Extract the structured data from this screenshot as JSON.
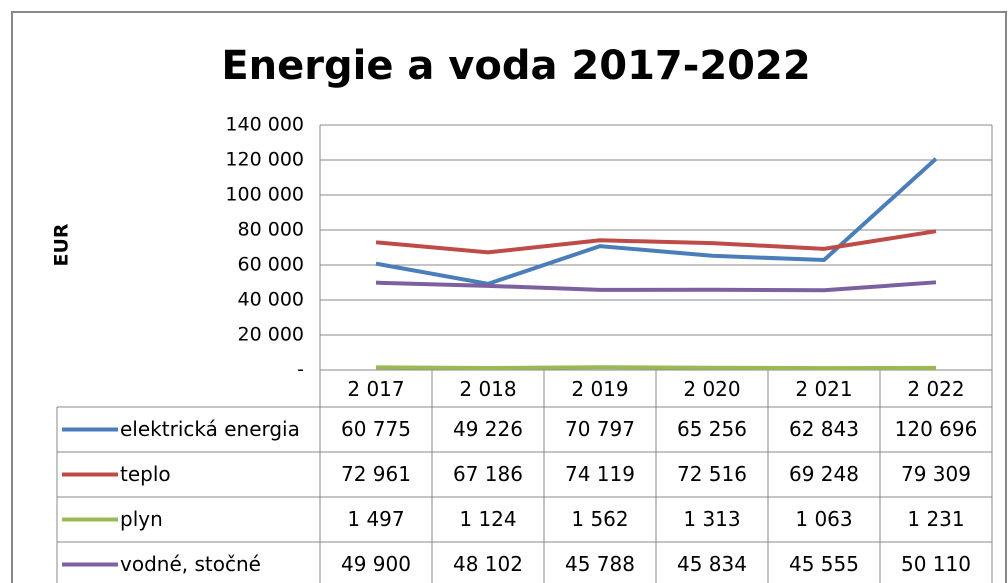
{
  "chart_data": {
    "type": "line",
    "title": "Energie a voda 2017-2022",
    "y_label": "EUR",
    "categories": [
      "2 017",
      "2 018",
      "2 019",
      "2 020",
      "2 021",
      "2 022"
    ],
    "series": [
      {
        "name": "elektrická energia",
        "color": "#4a7ebb",
        "values": [
          60775,
          49226,
          70797,
          65256,
          62843,
          120696
        ],
        "value_labels": [
          "60 775",
          "49 226",
          "70 797",
          "65 256",
          "62 843",
          "120 696"
        ]
      },
      {
        "name": "teplo",
        "color": "#be4b48",
        "values": [
          72961,
          67186,
          74119,
          72516,
          69248,
          79309
        ],
        "value_labels": [
          "72 961",
          "67 186",
          "74 119",
          "72 516",
          "69 248",
          "79 309"
        ]
      },
      {
        "name": "plyn",
        "color": "#98b954",
        "values": [
          1497,
          1124,
          1562,
          1313,
          1063,
          1231
        ],
        "value_labels": [
          "1 497",
          "1 124",
          "1 562",
          "1 313",
          "1 063",
          "1 231"
        ]
      },
      {
        "name": "vodné, stočné",
        "color": "#7d60a0",
        "values": [
          49900,
          48102,
          45788,
          45834,
          45555,
          50110
        ],
        "value_labels": [
          "49 900",
          "48 102",
          "45 788",
          "45 834",
          "45 555",
          "50 110"
        ]
      }
    ],
    "ylim": [
      0,
      140000
    ],
    "yticks": [
      {
        "value": 0,
        "label": "-"
      },
      {
        "value": 20000,
        "label": "20 000"
      },
      {
        "value": 40000,
        "label": "40 000"
      },
      {
        "value": 60000,
        "label": "60 000"
      },
      {
        "value": 80000,
        "label": "80 000"
      },
      {
        "value": 100000,
        "label": "100 000"
      },
      {
        "value": 120000,
        "label": "120 000"
      },
      {
        "value": 140000,
        "label": "140 000"
      }
    ],
    "grid": true
  }
}
